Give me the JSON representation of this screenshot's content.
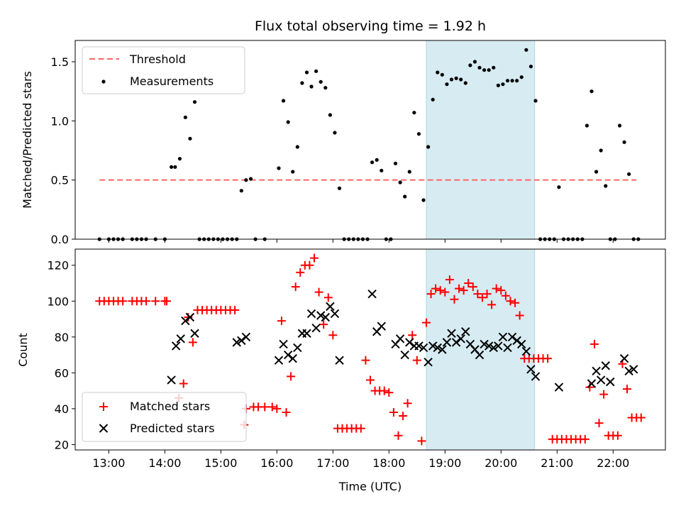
{
  "chart_data": [
    {
      "type": "scatter",
      "title": "Flux total observing time = 1.92 h",
      "xlabel": "",
      "ylabel": "Matched/Predicted stars",
      "ylim": [
        0,
        1.68
      ],
      "xlim": [
        "12:24",
        "22:56"
      ],
      "yticks": [
        0.0,
        0.5,
        1.0,
        1.5
      ],
      "ytick_labels": [
        "0.0",
        "0.5",
        "1.0",
        "1.5"
      ],
      "grid": false,
      "legend_position": "top-left",
      "highlight_span": {
        "start": "18:40",
        "end": "20:36",
        "color": "#add8e6"
      },
      "threshold": {
        "name": "Threshold",
        "value": 0.5,
        "from": "12:50",
        "to": "22:25",
        "color": "#ff6666",
        "style": "dashed"
      },
      "series": [
        {
          "name": "Measurements",
          "marker": "dot",
          "color": "#000000",
          "x": [
            "12:50",
            "13:00",
            "13:05",
            "13:10",
            "13:15",
            "13:25",
            "13:30",
            "13:35",
            "13:40",
            "13:50",
            "14:00",
            "14:07",
            "14:11",
            "14:16",
            "14:22",
            "14:27",
            "14:32",
            "14:37",
            "14:42",
            "14:47",
            "14:52",
            "14:57",
            "15:02",
            "15:07",
            "15:12",
            "15:17",
            "15:22",
            "15:27",
            "15:32",
            "15:37",
            "15:47",
            "16:02",
            "16:07",
            "16:12",
            "16:17",
            "16:22",
            "16:27",
            "16:32",
            "16:37",
            "16:42",
            "16:47",
            "16:52",
            "16:57",
            "17:02",
            "17:07",
            "17:12",
            "17:17",
            "17:22",
            "17:27",
            "17:32",
            "17:37",
            "17:42",
            "17:47",
            "17:52",
            "17:57",
            "18:02",
            "18:07",
            "18:12",
            "18:17",
            "18:22",
            "18:27",
            "18:32",
            "18:37",
            "18:42",
            "18:47",
            "18:52",
            "18:57",
            "19:02",
            "19:07",
            "19:12",
            "19:17",
            "19:22",
            "19:27",
            "19:32",
            "19:37",
            "19:42",
            "19:47",
            "19:52",
            "19:57",
            "20:02",
            "20:07",
            "20:12",
            "20:17",
            "20:22",
            "20:27",
            "20:32",
            "20:37",
            "20:42",
            "20:47",
            "20:52",
            "20:57",
            "21:02",
            "21:07",
            "21:12",
            "21:17",
            "21:22",
            "21:27",
            "21:32",
            "21:37",
            "21:42",
            "21:47",
            "21:52",
            "21:57",
            "22:02",
            "22:07",
            "22:12",
            "22:17",
            "22:22",
            "22:27"
          ],
          "y": [
            0.0,
            0.0,
            0.0,
            0.0,
            0.0,
            0.0,
            0.0,
            0.0,
            0.0,
            0.0,
            0.0,
            0.61,
            0.61,
            0.68,
            1.03,
            0.85,
            1.16,
            0.0,
            0.0,
            0.0,
            0.0,
            0.0,
            0.0,
            0.0,
            0.0,
            0.0,
            0.41,
            0.5,
            0.51,
            0.0,
            0.0,
            0.6,
            1.17,
            0.99,
            0.57,
            0.78,
            1.32,
            1.41,
            1.29,
            1.42,
            1.33,
            1.28,
            1.05,
            0.9,
            0.43,
            0.0,
            0.0,
            0.0,
            0.0,
            0.0,
            0.0,
            0.65,
            0.67,
            0.58,
            0.0,
            0.0,
            0.64,
            0.48,
            0.36,
            0.57,
            1.07,
            0.89,
            0.33,
            0.78,
            1.18,
            1.41,
            1.39,
            1.31,
            1.35,
            1.36,
            1.35,
            1.32,
            1.47,
            1.5,
            1.45,
            1.43,
            1.43,
            1.45,
            1.3,
            1.31,
            1.34,
            1.34,
            1.34,
            1.37,
            1.6,
            1.46,
            1.17,
            0.0,
            0.0,
            0.0,
            0.0,
            0.44,
            0.0,
            0.0,
            0.0,
            0.0,
            0.0,
            0.96,
            1.25,
            0.57,
            0.75,
            0.45,
            0.0,
            0.0,
            0.96,
            0.82,
            0.55,
            0.0,
            0.0
          ]
        }
      ]
    },
    {
      "type": "scatter",
      "title": "",
      "xlabel": "Time (UTC)",
      "ylabel": "Count",
      "ylim": [
        17,
        129
      ],
      "xlim": [
        "12:24",
        "22:56"
      ],
      "yticks": [
        20,
        40,
        60,
        80,
        100,
        120
      ],
      "ytick_labels": [
        "20",
        "40",
        "60",
        "80",
        "100",
        "120"
      ],
      "xticks": [
        "13:00",
        "14:00",
        "15:00",
        "16:00",
        "17:00",
        "18:00",
        "19:00",
        "20:00",
        "21:00",
        "22:00"
      ],
      "xtick_labels": [
        "13:00",
        "14:00",
        "15:00",
        "16:00",
        "17:00",
        "18:00",
        "19:00",
        "20:00",
        "21:00",
        "22:00"
      ],
      "grid": false,
      "legend_position": "bottom-left",
      "highlight_span": {
        "start": "18:40",
        "end": "20:36",
        "color": "#add8e6"
      },
      "series": [
        {
          "name": "Matched stars",
          "marker": "plus",
          "color": "#ff0000",
          "x": [
            "12:50",
            "12:55",
            "13:00",
            "13:05",
            "13:10",
            "13:15",
            "13:25",
            "13:30",
            "13:35",
            "13:40",
            "13:50",
            "14:00",
            "14:02",
            "14:15",
            "14:20",
            "14:25",
            "14:30",
            "14:35",
            "14:40",
            "14:45",
            "14:50",
            "14:55",
            "15:00",
            "15:05",
            "15:10",
            "15:15",
            "15:25",
            "15:27",
            "15:35",
            "15:40",
            "15:47",
            "15:55",
            "16:00",
            "16:05",
            "16:10",
            "16:15",
            "16:20",
            "16:25",
            "16:30",
            "16:35",
            "16:40",
            "16:45",
            "16:50",
            "16:55",
            "17:00",
            "17:05",
            "17:10",
            "17:15",
            "17:20",
            "17:25",
            "17:30",
            "17:35",
            "17:40",
            "17:45",
            "17:50",
            "17:55",
            "18:00",
            "18:05",
            "18:10",
            "18:15",
            "18:20",
            "18:25",
            "18:30",
            "18:35",
            "18:40",
            "18:45",
            "18:50",
            "18:55",
            "19:00",
            "19:05",
            "19:10",
            "19:15",
            "19:20",
            "19:25",
            "19:30",
            "19:35",
            "19:40",
            "19:45",
            "19:50",
            "19:55",
            "20:00",
            "20:05",
            "20:10",
            "20:15",
            "20:20",
            "20:25",
            "20:30",
            "20:35",
            "20:40",
            "20:45",
            "20:50",
            "20:55",
            "21:00",
            "21:05",
            "21:10",
            "21:15",
            "21:20",
            "21:25",
            "21:30",
            "21:35",
            "21:40",
            "21:45",
            "21:50",
            "21:55",
            "22:00",
            "22:05",
            "22:10",
            "22:15",
            "22:20",
            "22:25",
            "22:30"
          ],
          "y": [
            100,
            100,
            100,
            100,
            100,
            100,
            100,
            100,
            100,
            100,
            100,
            100,
            100,
            46,
            54,
            91,
            77,
            95,
            95,
            95,
            95,
            95,
            95,
            95,
            95,
            95,
            31,
            40,
            41,
            41,
            41,
            41,
            40,
            89,
            38,
            58,
            108,
            116,
            120,
            120,
            124,
            105,
            87,
            102,
            81,
            29,
            29,
            29,
            29,
            29,
            29,
            67,
            56,
            50,
            50,
            50,
            49,
            38,
            25,
            36,
            43,
            81,
            67,
            22,
            88,
            104,
            107,
            106,
            105,
            112,
            101,
            107,
            106,
            110,
            108,
            104,
            102,
            104,
            98,
            107,
            106,
            103,
            100,
            99,
            92,
            68,
            68,
            68,
            68,
            68,
            68,
            23,
            23,
            23,
            23,
            23,
            23,
            23,
            23,
            52,
            76,
            32,
            48,
            25,
            25,
            25,
            65,
            51,
            35,
            35,
            35
          ]
        },
        {
          "name": "Predicted stars",
          "marker": "x",
          "color": "#000000",
          "x": [
            "14:07",
            "14:12",
            "14:17",
            "14:22",
            "14:27",
            "14:32",
            "15:17",
            "15:22",
            "15:27",
            "16:02",
            "16:07",
            "16:12",
            "16:17",
            "16:22",
            "16:27",
            "16:32",
            "16:37",
            "16:42",
            "16:47",
            "16:52",
            "16:57",
            "17:02",
            "17:07",
            "17:42",
            "17:47",
            "17:52",
            "18:07",
            "18:12",
            "18:17",
            "18:22",
            "18:27",
            "18:32",
            "18:37",
            "18:42",
            "18:47",
            "18:52",
            "18:57",
            "19:02",
            "19:07",
            "19:12",
            "19:17",
            "19:22",
            "19:27",
            "19:32",
            "19:37",
            "19:42",
            "19:47",
            "19:52",
            "19:57",
            "20:02",
            "20:07",
            "20:12",
            "20:17",
            "20:22",
            "20:27",
            "20:32",
            "20:37",
            "21:02",
            "21:37",
            "21:42",
            "21:47",
            "21:52",
            "21:57",
            "22:12",
            "22:17",
            "22:22"
          ],
          "y": [
            56,
            75,
            79,
            89,
            91,
            82,
            77,
            78,
            80,
            67,
            76,
            70,
            68,
            74,
            82,
            82,
            93,
            85,
            92,
            91,
            97,
            93,
            67,
            104,
            83,
            86,
            76,
            79,
            70,
            77,
            75,
            75,
            74,
            66,
            75,
            74,
            73,
            77,
            82,
            77,
            79,
            83,
            76,
            73,
            70,
            76,
            75,
            74,
            75,
            80,
            74,
            80,
            78,
            76,
            72,
            62,
            58,
            52,
            54,
            61,
            56,
            64,
            55,
            68,
            61,
            62
          ]
        }
      ]
    }
  ],
  "legend_top": {
    "threshold_label": "Threshold",
    "measurements_label": "Measurements"
  },
  "legend_bottom": {
    "matched_label": "Matched stars",
    "predicted_label": "Predicted stars"
  },
  "colors": {
    "threshold": "#ff6666",
    "span": "#add8e6",
    "matched": "#ff0000",
    "predicted": "#000000",
    "measurement": "#000000"
  }
}
